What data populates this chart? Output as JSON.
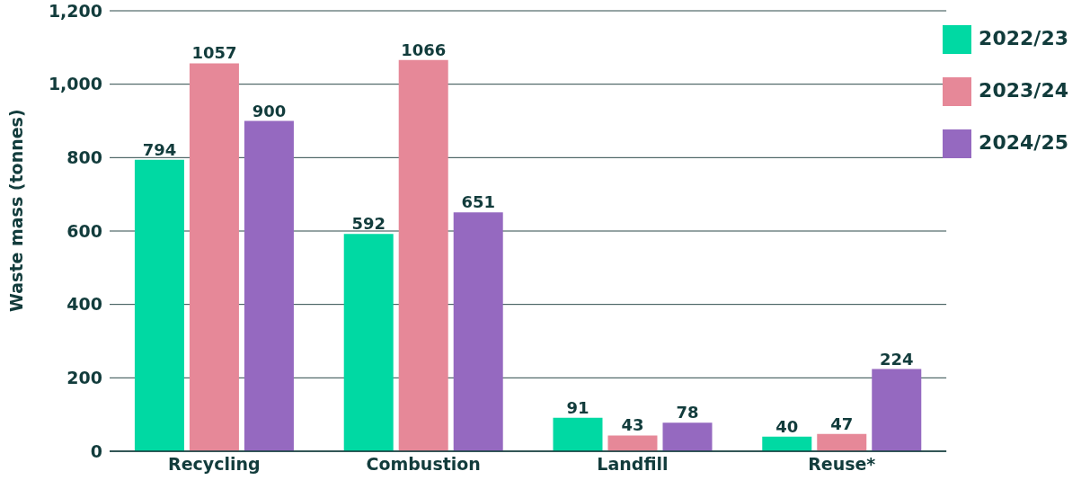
{
  "chart_data": {
    "type": "bar",
    "ylabel": "Waste mass (tonnes)",
    "categories": [
      "Recycling",
      "Combustion",
      "Landfill",
      "Reuse*"
    ],
    "series": [
      {
        "name": "2022/23",
        "color": "#00d9a3",
        "values": [
          794,
          592,
          91,
          40
        ]
      },
      {
        "name": "2023/24",
        "color": "#e68898",
        "values": [
          1057,
          1066,
          43,
          47
        ]
      },
      {
        "name": "2024/25",
        "color": "#9569c0",
        "values": [
          900,
          651,
          78,
          224
        ]
      }
    ],
    "ylim": [
      0,
      1200
    ],
    "yticks": [
      {
        "value": 0,
        "label": "0"
      },
      {
        "value": 200,
        "label": "200"
      },
      {
        "value": 400,
        "label": "400"
      },
      {
        "value": 600,
        "label": "600"
      },
      {
        "value": 800,
        "label": "800"
      },
      {
        "value": 1000,
        "label": "1,000"
      },
      {
        "value": 1200,
        "label": "1,200"
      }
    ],
    "grid": "y",
    "legend": "right",
    "data_labels": true
  }
}
